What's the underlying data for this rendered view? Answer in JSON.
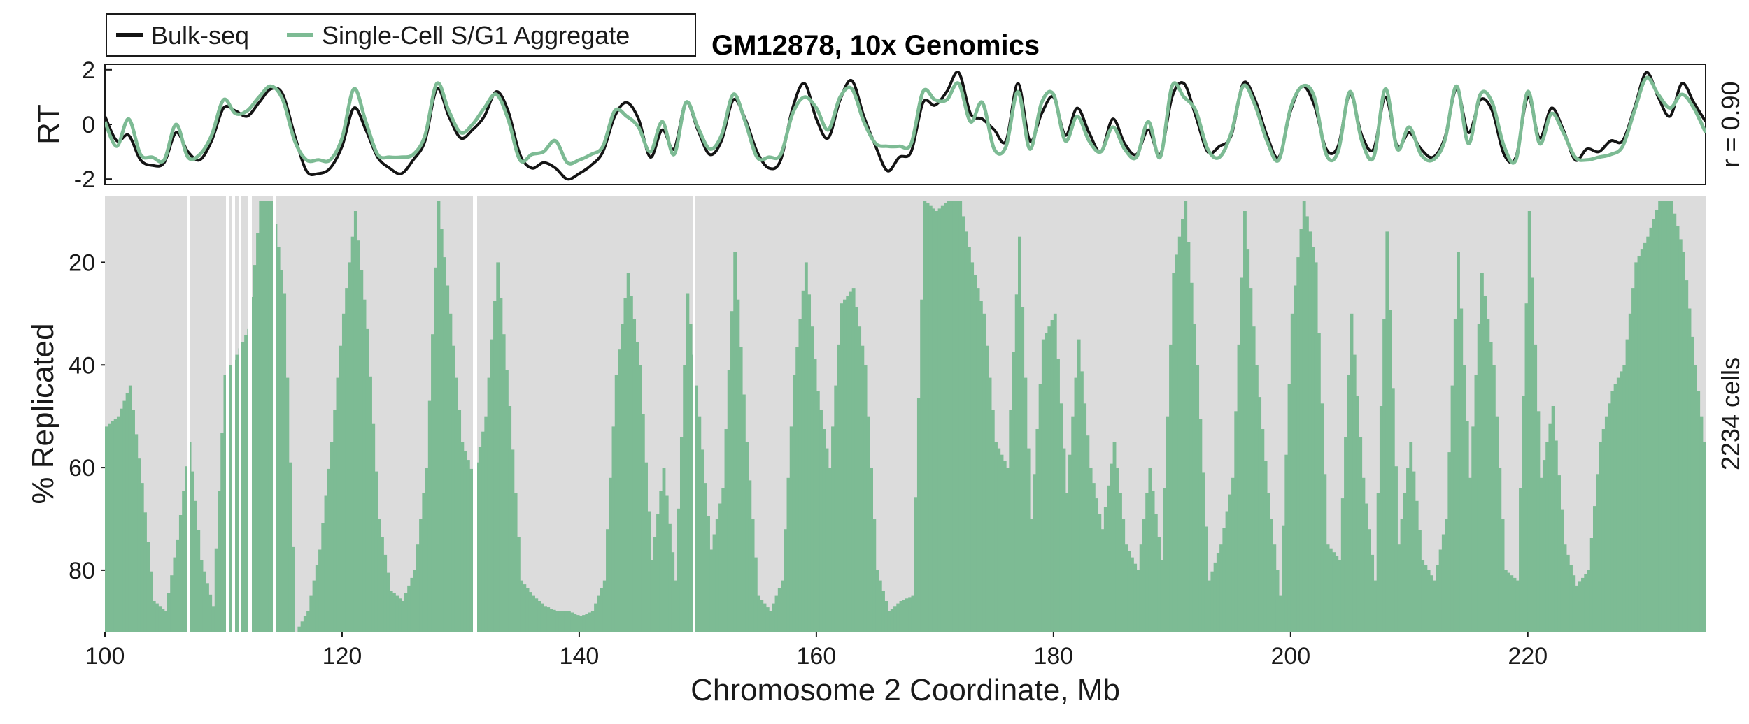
{
  "colors": {
    "bulk": "#141414",
    "single_cell": "#7dbb94",
    "heatmap_background": "#dcdcdc",
    "heatmap_replicated": "#7dbb94",
    "gap": "#ffffff"
  },
  "chart_data": [
    {
      "type": "line",
      "title": "GM12878, 10x Genomics",
      "ylabel": "RT",
      "xlim": [
        100,
        235
      ],
      "ylim": [
        -2.2,
        2.2
      ],
      "yticks": [
        {
          "value": 2,
          "label": "2"
        },
        {
          "value": 0,
          "label": "0"
        },
        {
          "value": -2,
          "label": "-2"
        }
      ],
      "legend": {
        "placement": "top-left, outside above the plot"
      },
      "annotation": "r = 0.90",
      "series": [
        {
          "name": "Bulk-seq",
          "color": "#141414",
          "x": [
            100,
            101,
            102,
            103,
            104,
            105,
            106,
            107,
            108,
            109,
            110,
            111,
            112,
            113,
            114,
            115,
            116,
            117,
            118,
            119,
            120,
            121,
            122,
            123,
            124,
            125,
            126,
            127,
            128,
            129,
            130,
            131,
            132,
            133,
            134,
            135,
            136,
            137,
            138,
            139,
            140,
            141,
            142,
            143,
            144,
            145,
            146,
            147,
            148,
            149,
            150,
            151,
            152,
            153,
            154,
            155,
            156,
            157,
            158,
            159,
            160,
            161,
            162,
            163,
            164,
            165,
            166,
            167,
            168,
            169,
            170,
            171,
            172,
            173,
            174,
            175,
            176,
            177,
            178,
            179,
            180,
            181,
            182,
            183,
            184,
            185,
            186,
            187,
            188,
            189,
            190,
            191,
            192,
            193,
            194,
            195,
            196,
            197,
            198,
            199,
            200,
            201,
            202,
            203,
            204,
            205,
            206,
            207,
            208,
            209,
            210,
            211,
            212,
            213,
            214,
            215,
            216,
            217,
            218,
            219,
            220,
            221,
            222,
            223,
            224,
            225,
            226,
            227,
            228,
            229,
            230,
            231,
            232,
            233,
            234,
            235
          ],
          "y": [
            0.3,
            -0.6,
            -0.4,
            -1.3,
            -1.5,
            -1.4,
            -0.3,
            -1.0,
            -1.3,
            -0.6,
            0.6,
            0.5,
            0.3,
            0.8,
            1.3,
            1.1,
            -0.4,
            -1.7,
            -1.8,
            -1.6,
            -0.8,
            0.6,
            -0.2,
            -1.2,
            -1.6,
            -1.8,
            -1.3,
            -0.6,
            1.3,
            0.3,
            -0.5,
            -0.2,
            0.3,
            1.2,
            0.5,
            -1.1,
            -1.6,
            -1.4,
            -1.6,
            -2.0,
            -1.8,
            -1.5,
            -1.0,
            0.3,
            0.8,
            0.2,
            -1.2,
            -0.2,
            -0.9,
            0.8,
            -0.2,
            -1.1,
            -0.6,
            0.9,
            0.2,
            -1.0,
            -1.6,
            -1.3,
            0.6,
            1.5,
            0.2,
            -0.5,
            0.9,
            1.6,
            0.3,
            -0.8,
            -1.7,
            -1.2,
            -1.0,
            0.8,
            0.7,
            1.2,
            1.9,
            0.4,
            0.2,
            -0.2,
            -0.6,
            1.5,
            -0.6,
            0.4,
            1.0,
            -0.4,
            0.6,
            -0.3,
            -1.0,
            0.2,
            -0.7,
            -1.1,
            -0.2,
            -1.1,
            1.0,
            1.5,
            0.3,
            -1.0,
            -0.8,
            -0.4,
            1.5,
            0.9,
            -0.4,
            -1.2,
            0.5,
            1.4,
            0.7,
            -0.9,
            -0.8,
            1.1,
            -0.4,
            -0.9,
            1.0,
            -0.8,
            -0.3,
            -0.9,
            -1.2,
            -0.5,
            1.3,
            -0.3,
            0.9,
            0.5,
            -1.1,
            -1.2,
            1.0,
            -0.5,
            0.6,
            -0.2,
            -1.3,
            -0.9,
            -1.0,
            -0.6,
            -0.6,
            0.6,
            1.9,
            1.0,
            0.3,
            1.5,
            0.8,
            0.1
          ]
        },
        {
          "name": "Single-Cell S/G1 Aggregate",
          "color": "#7dbb94",
          "x": [
            100,
            101,
            102,
            103,
            104,
            105,
            106,
            107,
            108,
            109,
            110,
            111,
            112,
            113,
            114,
            115,
            116,
            117,
            118,
            119,
            120,
            121,
            122,
            123,
            124,
            125,
            126,
            127,
            128,
            129,
            130,
            131,
            132,
            133,
            134,
            135,
            136,
            137,
            138,
            139,
            140,
            141,
            142,
            143,
            144,
            145,
            146,
            147,
            148,
            149,
            150,
            151,
            152,
            153,
            154,
            155,
            156,
            157,
            158,
            159,
            160,
            161,
            162,
            163,
            164,
            165,
            166,
            167,
            168,
            169,
            170,
            171,
            172,
            173,
            174,
            175,
            176,
            177,
            178,
            179,
            180,
            181,
            182,
            183,
            184,
            185,
            186,
            187,
            188,
            189,
            190,
            191,
            192,
            193,
            194,
            195,
            196,
            197,
            198,
            199,
            200,
            201,
            202,
            203,
            204,
            205,
            206,
            207,
            208,
            209,
            210,
            211,
            212,
            213,
            214,
            215,
            216,
            217,
            218,
            219,
            220,
            221,
            222,
            223,
            224,
            225,
            226,
            227,
            228,
            229,
            230,
            231,
            232,
            233,
            234,
            235
          ],
          "y": [
            0.1,
            -0.8,
            0.2,
            -1.1,
            -1.2,
            -1.3,
            0.0,
            -1.2,
            -1.1,
            -0.4,
            0.9,
            0.4,
            0.5,
            1.0,
            1.4,
            0.9,
            -0.6,
            -1.3,
            -1.3,
            -1.3,
            -0.5,
            1.3,
            0.1,
            -1.1,
            -1.2,
            -1.2,
            -1.1,
            -0.4,
            1.5,
            0.5,
            -0.3,
            0.0,
            0.6,
            1.1,
            0.2,
            -1.3,
            -1.1,
            -1.0,
            -0.6,
            -1.4,
            -1.3,
            -1.1,
            -0.8,
            0.5,
            0.3,
            -0.1,
            -1.0,
            0.1,
            -1.1,
            0.8,
            -0.1,
            -0.9,
            -0.4,
            1.1,
            0.1,
            -1.2,
            -1.2,
            -1.1,
            0.4,
            1.0,
            0.6,
            -0.2,
            1.0,
            1.3,
            0.1,
            -0.7,
            -0.8,
            -0.8,
            -0.7,
            1.2,
            0.9,
            0.9,
            1.5,
            0.1,
            0.8,
            -0.9,
            -0.8,
            1.2,
            -0.9,
            0.8,
            1.1,
            -0.6,
            0.3,
            -0.6,
            -1.0,
            -0.1,
            -0.9,
            -1.2,
            0.1,
            -1.2,
            1.4,
            1.0,
            0.5,
            -0.9,
            -1.2,
            -0.3,
            1.4,
            0.7,
            -0.6,
            -1.3,
            0.6,
            1.4,
            1.0,
            -1.1,
            -1.0,
            1.2,
            -0.6,
            -1.2,
            1.3,
            -0.9,
            -0.1,
            -1.1,
            -1.3,
            -0.6,
            1.4,
            -0.7,
            1.1,
            0.8,
            -0.8,
            -1.3,
            1.2,
            -0.7,
            0.4,
            -0.3,
            -1.2,
            -1.3,
            -1.2,
            -1.1,
            -0.8,
            0.5,
            1.7,
            1.1,
            0.6,
            1.1,
            0.6,
            -0.3
          ]
        }
      ]
    },
    {
      "type": "heatmap",
      "xlabel": "Chromosome 2 Coordinate, Mb",
      "ylabel": "% Replicated",
      "xlim": [
        100,
        235
      ],
      "ylim": [
        7,
        92
      ],
      "xticks": [
        {
          "value": 100,
          "label": "100"
        },
        {
          "value": 120,
          "label": "120"
        },
        {
          "value": 140,
          "label": "140"
        },
        {
          "value": 160,
          "label": "160"
        },
        {
          "value": 180,
          "label": "180"
        },
        {
          "value": 200,
          "label": "200"
        },
        {
          "value": 220,
          "label": "220"
        }
      ],
      "yticks": [
        {
          "value": 20,
          "label": "20"
        },
        {
          "value": 40,
          "label": "40"
        },
        {
          "value": 60,
          "label": "60"
        },
        {
          "value": 80,
          "label": "80"
        }
      ],
      "annotation": "2234  cells",
      "description_values": "green = replicated, grey = unreplicated; each column's replication onset expressed as % replicated",
      "onset_percent_by_mb": [
        52,
        50,
        44,
        63,
        86,
        88,
        74,
        55,
        78,
        87,
        42,
        38,
        33,
        8,
        8,
        26,
        92,
        88,
        76,
        55,
        30,
        10,
        33,
        70,
        84,
        86,
        80,
        60,
        8,
        30,
        55,
        62,
        50,
        20,
        48,
        82,
        85,
        87,
        88,
        88,
        89,
        88,
        82,
        42,
        22,
        40,
        78,
        60,
        82,
        26,
        50,
        76,
        64,
        18,
        55,
        85,
        88,
        82,
        42,
        20,
        45,
        60,
        28,
        25,
        40,
        80,
        88,
        86,
        85,
        8,
        10,
        8,
        8,
        20,
        30,
        55,
        60,
        15,
        70,
        35,
        30,
        65,
        35,
        60,
        72,
        55,
        75,
        80,
        60,
        78,
        22,
        8,
        40,
        82,
        75,
        62,
        10,
        40,
        65,
        85,
        30,
        8,
        20,
        75,
        78,
        30,
        62,
        82,
        14,
        75,
        55,
        78,
        82,
        70,
        18,
        62,
        22,
        40,
        80,
        82,
        10,
        62,
        48,
        75,
        83,
        80,
        55,
        45,
        40,
        20,
        15,
        8,
        8,
        18,
        40,
        60
      ]
    }
  ]
}
